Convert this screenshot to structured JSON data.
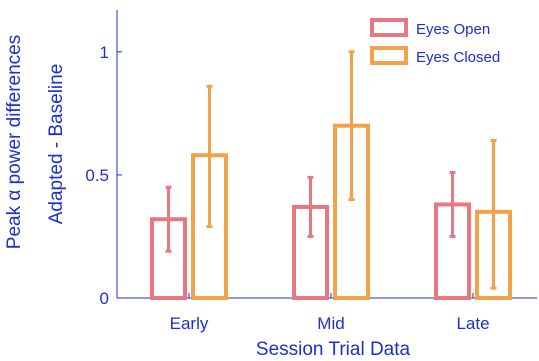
{
  "chart_data": {
    "type": "bar",
    "categories": [
      "Early",
      "Mid",
      "Late"
    ],
    "series": [
      {
        "name": "Eyes Open",
        "color": "#e8777f",
        "values": [
          0.32,
          0.37,
          0.38
        ],
        "err_low": [
          0.19,
          0.25,
          0.25
        ],
        "err_high": [
          0.45,
          0.49,
          0.51
        ]
      },
      {
        "name": "Eyes Closed",
        "color": "#f2a24a",
        "values": [
          0.58,
          0.7,
          0.35
        ],
        "err_low": [
          0.29,
          0.4,
          0.04
        ],
        "err_high": [
          0.86,
          1.0,
          0.64
        ]
      }
    ],
    "xlabel": "Session Trial Data",
    "ylabel_lines": [
      "Peak α power differences",
      "Adapted - Baseline"
    ],
    "ylim": [
      0,
      1.17
    ],
    "yticks": [
      0,
      0.5,
      1
    ],
    "ytick_labels": [
      "0",
      "0.5",
      "1"
    ],
    "grid": false,
    "legend_position": "top-right",
    "axis_color": "#1c2fd6"
  }
}
